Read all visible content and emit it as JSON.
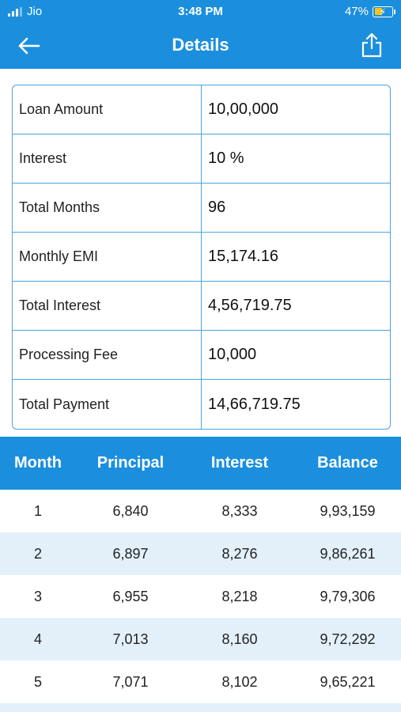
{
  "status_bar": {
    "carrier": "Jio",
    "time": "3:48 PM",
    "battery": "47%"
  },
  "nav": {
    "title": "Details",
    "back_icon": "arrow-left-icon",
    "share_icon": "share-icon"
  },
  "summary": [
    {
      "label": "Loan Amount",
      "value": "10,00,000"
    },
    {
      "label": "Interest",
      "value": "10 %"
    },
    {
      "label": "Total Months",
      "value": "96"
    },
    {
      "label": "Monthly EMI",
      "value": "15,174.16"
    },
    {
      "label": "Total Interest",
      "value": "4,56,719.75"
    },
    {
      "label": "Processing Fee",
      "value": "10,000"
    },
    {
      "label": "Total Payment",
      "value": "14,66,719.75"
    }
  ],
  "schedule": {
    "headers": [
      "Month",
      "Principal",
      "Interest",
      "Balance"
    ],
    "rows": [
      [
        "1",
        "6,840",
        "8,333",
        "9,93,159"
      ],
      [
        "2",
        "6,897",
        "8,276",
        "9,86,261"
      ],
      [
        "3",
        "6,955",
        "8,218",
        "9,79,306"
      ],
      [
        "4",
        "7,013",
        "8,160",
        "9,72,292"
      ],
      [
        "5",
        "7,071",
        "8,102",
        "9,65,221"
      ]
    ]
  },
  "colors": {
    "primary": "#1b8fdd",
    "border": "#4aa3e0",
    "alt_row": "#e3f0fa"
  }
}
